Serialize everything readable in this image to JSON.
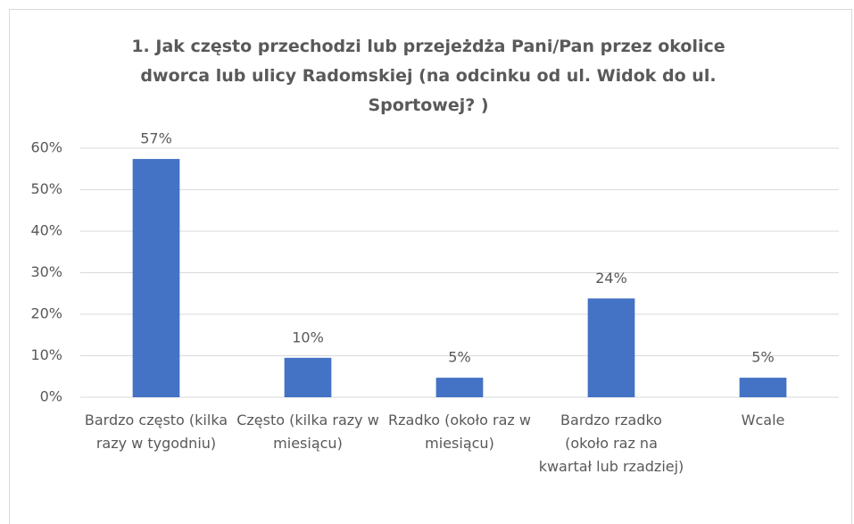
{
  "chart_data": {
    "type": "bar",
    "title": "1. Jak często przechodzi lub przejeżdża Pani/Pan przez okolice dworca lub ulicy Radomskiej (na odcinku od ul. Widok do ul. Sportowej? )",
    "categories": [
      "Bardzo często (kilka razy w tygodniu)",
      "Często (kilka razy w miesiącu)",
      "Rzadko (około raz w miesiącu)",
      "Bardzo rzadko (około raz na kwartał lub rzadziej)",
      "Wcale"
    ],
    "values": [
      57.4,
      9.5,
      4.7,
      23.8,
      4.7
    ],
    "value_labels": [
      "57%",
      "10%",
      "5%",
      "24%",
      "5%"
    ],
    "color": "#4472c4",
    "ylim": [
      0,
      60
    ],
    "yticks": [
      {
        "value": 0,
        "label": "0%"
      },
      {
        "value": 10,
        "label": "10%"
      },
      {
        "value": 20,
        "label": "20%"
      },
      {
        "value": 30,
        "label": "30%"
      },
      {
        "value": 40,
        "label": "40%"
      },
      {
        "value": 50,
        "label": "50%"
      },
      {
        "value": 60,
        "label": "60%"
      }
    ],
    "grid": true
  }
}
